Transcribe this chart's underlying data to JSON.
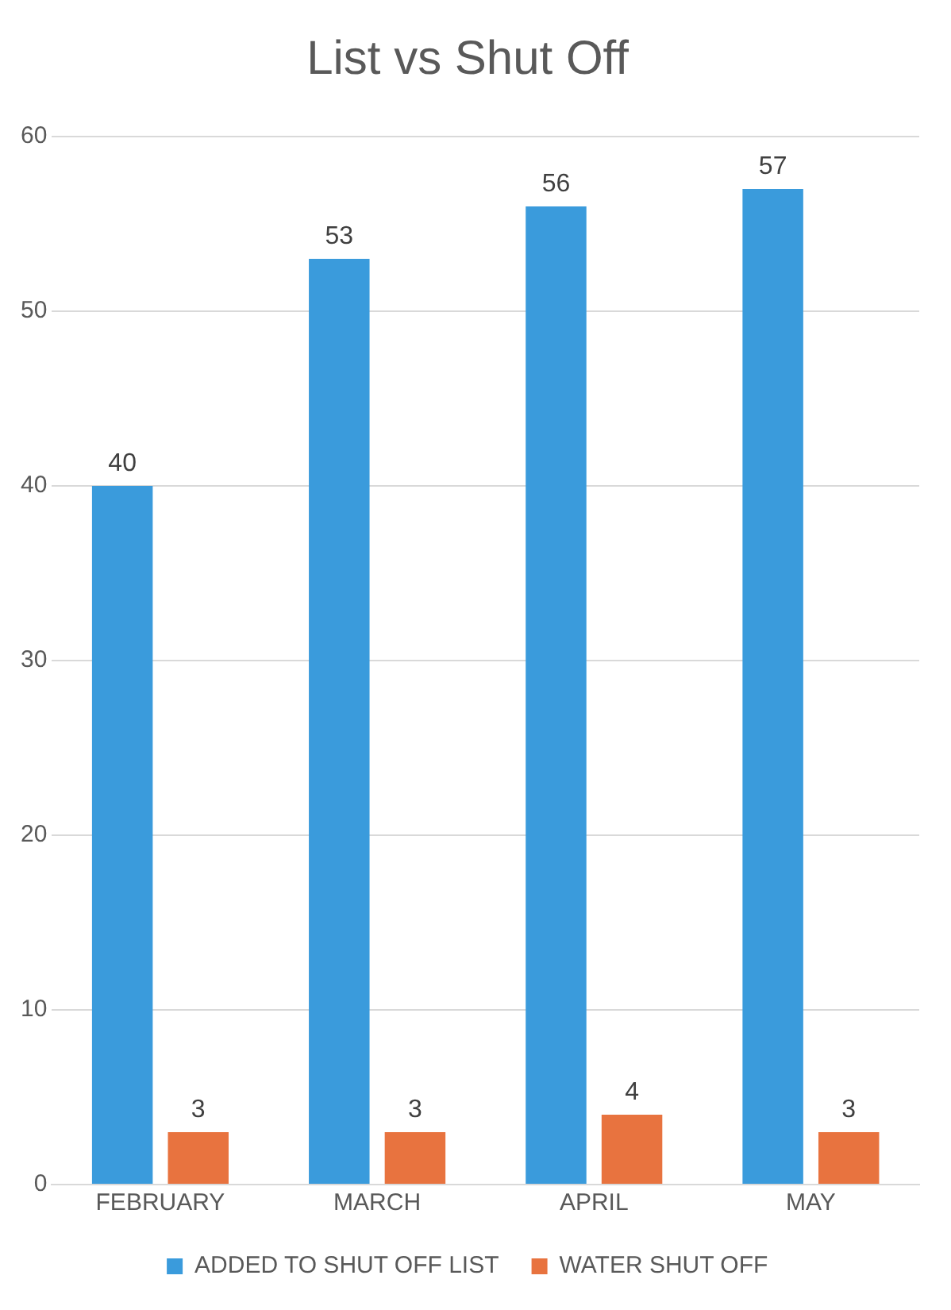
{
  "chart_data": {
    "type": "bar",
    "title": "List vs Shut Off",
    "categories": [
      "FEBRUARY",
      "MARCH",
      "APRIL",
      "MAY"
    ],
    "series": [
      {
        "name": "ADDED TO SHUT OFF LIST",
        "color": "#3a9bdc",
        "values": [
          40,
          53,
          56,
          57
        ]
      },
      {
        "name": "WATER SHUT OFF",
        "color": "#e8733f",
        "values": [
          3,
          3,
          4,
          3
        ]
      }
    ],
    "ylim": [
      0,
      60
    ],
    "yticks": [
      0,
      10,
      20,
      30,
      40,
      50,
      60
    ],
    "grid": "y",
    "legend": "bottom",
    "data_labels": true
  }
}
